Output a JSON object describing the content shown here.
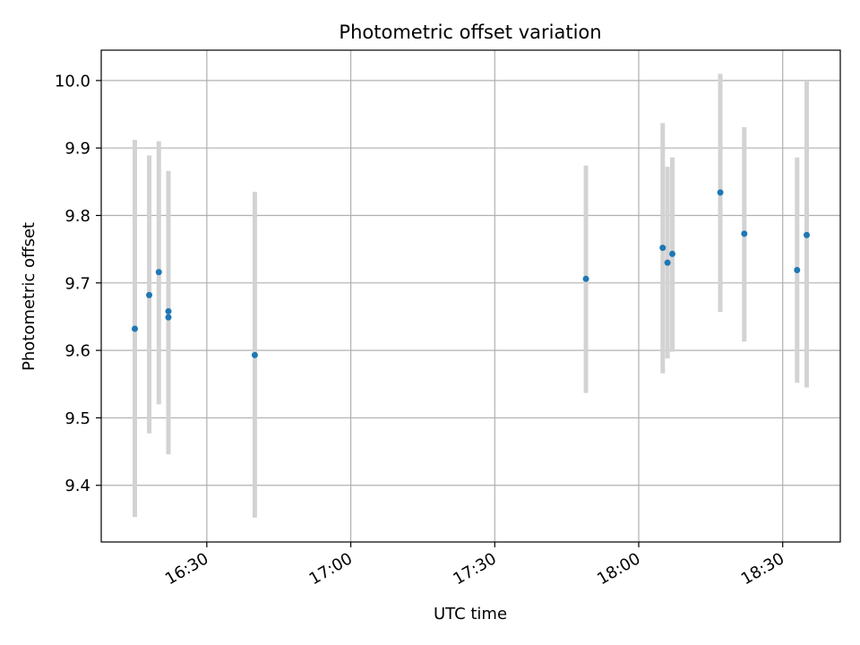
{
  "chart_data": {
    "type": "scatter",
    "title": "Photometric offset variation",
    "xlabel": "UTC time",
    "ylabel": "Photometric offset",
    "grid": true,
    "xlim": [
      "16:08",
      "18:42"
    ],
    "ylim": [
      9.316,
      10.045
    ],
    "x_ticks": [
      {
        "t": "16:30",
        "label": "16:30"
      },
      {
        "t": "17:00",
        "label": "17:00"
      },
      {
        "t": "17:30",
        "label": "17:30"
      },
      {
        "t": "18:00",
        "label": "18:00"
      },
      {
        "t": "18:30",
        "label": "18:30"
      }
    ],
    "y_ticks": [
      9.4,
      9.5,
      9.6,
      9.7,
      9.8,
      9.9,
      10.0
    ],
    "y_tick_labels": [
      "9.4",
      "9.5",
      "9.6",
      "9.7",
      "9.8",
      "9.9",
      "10.0"
    ],
    "colors": {
      "point": "#1f77b4",
      "errorbar": "#d3d3d3",
      "grid": "#b0b0b0"
    },
    "points": [
      {
        "t": "16:15",
        "y": 9.632,
        "ylo": 9.353,
        "yhi": 9.912
      },
      {
        "t": "16:18",
        "y": 9.682,
        "ylo": 9.477,
        "yhi": 9.889
      },
      {
        "t": "16:20",
        "y": 9.716,
        "ylo": 9.52,
        "yhi": 9.91
      },
      {
        "t": "16:22",
        "y": 9.658,
        "ylo": 9.448,
        "yhi": 9.866
      },
      {
        "t": "16:22",
        "y": 9.649,
        "ylo": 9.446,
        "yhi": 9.854
      },
      {
        "t": "16:40",
        "y": 9.593,
        "ylo": 9.352,
        "yhi": 9.835
      },
      {
        "t": "17:49",
        "y": 9.706,
        "ylo": 9.537,
        "yhi": 9.874
      },
      {
        "t": "18:05",
        "y": 9.752,
        "ylo": 9.566,
        "yhi": 9.937
      },
      {
        "t": "18:06",
        "y": 9.73,
        "ylo": 9.588,
        "yhi": 9.872
      },
      {
        "t": "18:07",
        "y": 9.743,
        "ylo": 9.598,
        "yhi": 9.886
      },
      {
        "t": "18:17",
        "y": 9.834,
        "ylo": 9.657,
        "yhi": 10.01
      },
      {
        "t": "18:22",
        "y": 9.773,
        "ylo": 9.613,
        "yhi": 9.931
      },
      {
        "t": "18:33",
        "y": 9.719,
        "ylo": 9.552,
        "yhi": 9.886
      },
      {
        "t": "18:35",
        "y": 9.771,
        "ylo": 9.545,
        "yhi": 10.0
      }
    ]
  }
}
